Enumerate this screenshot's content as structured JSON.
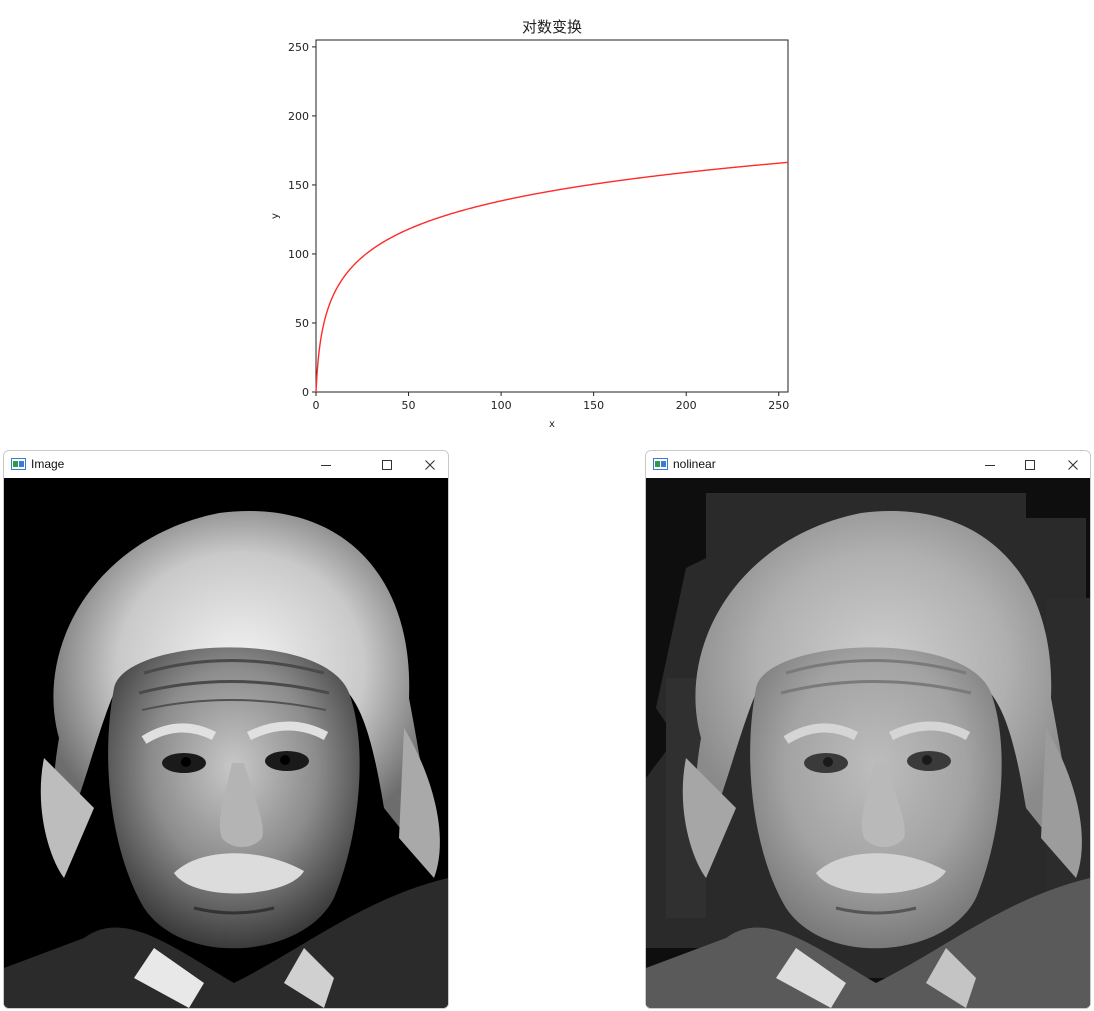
{
  "chart_data": {
    "type": "line",
    "title": "对数变换",
    "xlabel": "x",
    "ylabel": "y",
    "xlim": [
      0,
      255
    ],
    "ylim": [
      0,
      255
    ],
    "xticks": [
      0,
      50,
      100,
      150,
      200,
      250
    ],
    "yticks": [
      0,
      50,
      100,
      150,
      200,
      250
    ],
    "series": [
      {
        "color": "#ff2a2a",
        "formula": "y = 30 * ln(1 + x)",
        "x": [
          0,
          1,
          2,
          5,
          10,
          20,
          30,
          50,
          75,
          100,
          125,
          150,
          175,
          200,
          225,
          255
        ],
        "y": [
          0,
          20.8,
          33.0,
          53.8,
          71.9,
          91.3,
          103.0,
          118.0,
          129.9,
          138.5,
          145.3,
          150.6,
          155.2,
          159.1,
          162.6,
          166.4
        ]
      }
    ]
  },
  "windows": [
    {
      "title": "Image",
      "icon": "app-window-icon",
      "minimize": "minimize-icon",
      "maximize": "maximize-icon",
      "close": "close-icon",
      "content": "portrait-original"
    },
    {
      "title": "nolinear",
      "icon": "app-window-icon",
      "minimize": "minimize-icon",
      "maximize": "maximize-icon",
      "close": "close-icon",
      "content": "portrait-log-transformed"
    }
  ],
  "colors": {
    "curve": "#ff2a2a",
    "image_background": "#000000",
    "nolinear_background": "#1e1e1e"
  }
}
